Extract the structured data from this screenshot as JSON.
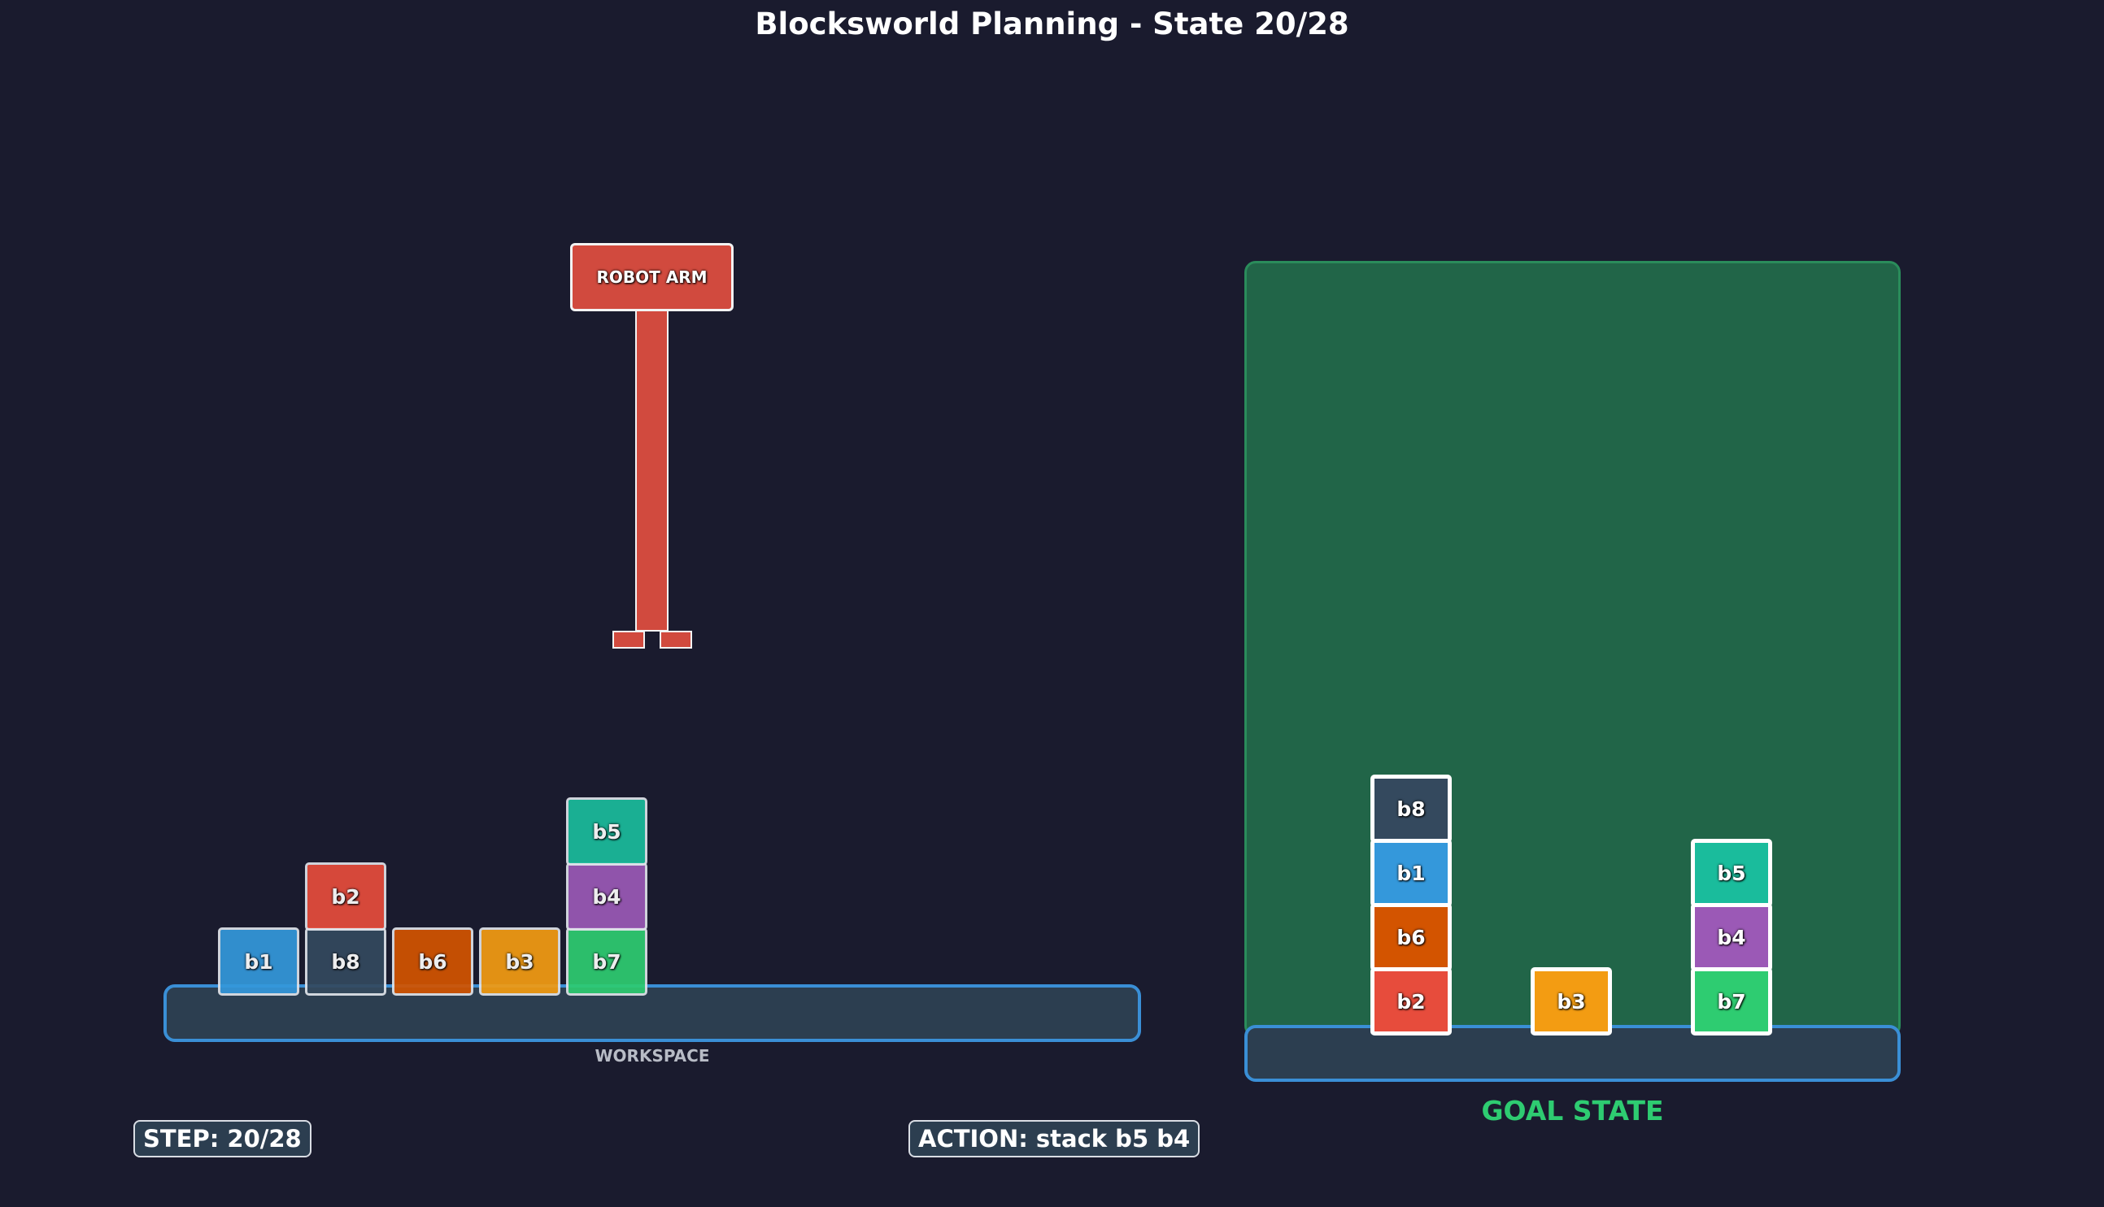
{
  "title": "Blocksworld Planning - State 20/28",
  "robot_arm_label": "ROBOT ARM",
  "workspace_label": "WORKSPACE",
  "goal_label": "GOAL STATE",
  "step_text": "STEP: 20/28",
  "action_text": "ACTION: stack b5 b4",
  "colors": {
    "b1": "#3498db",
    "b2": "#e74c3c",
    "b3": "#f39c12",
    "b4": "#9b59b6",
    "b5": "#1abc9c",
    "b6": "#d35400",
    "b7": "#2ecc71",
    "b8": "#34495e"
  },
  "workspace_stacks": [
    [
      "b1"
    ],
    [
      "b8",
      "b2"
    ],
    [
      "b6"
    ],
    [
      "b3"
    ],
    [
      "b7",
      "b4",
      "b5"
    ]
  ],
  "goal_stacks": [
    [
      "b2",
      "b6",
      "b1",
      "b8"
    ],
    [
      "b3"
    ],
    [
      "b7",
      "b4",
      "b5"
    ]
  ]
}
